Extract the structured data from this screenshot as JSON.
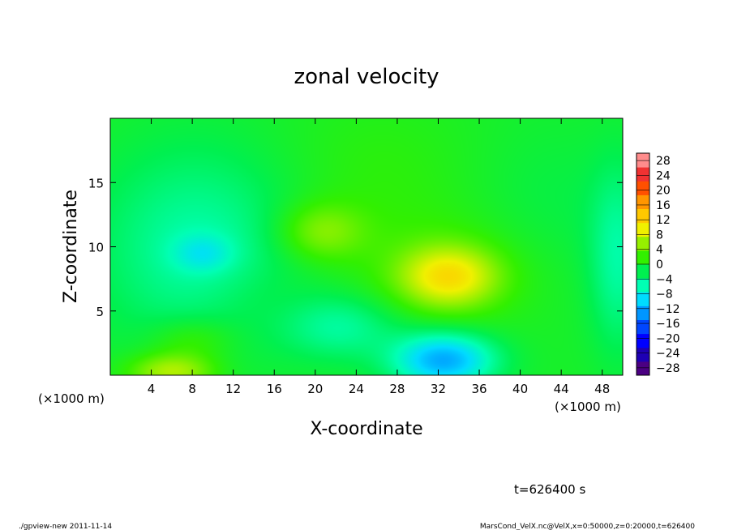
{
  "chart_data": {
    "type": "heatmap",
    "title": "zonal velocity",
    "xlabel": "X-coordinate",
    "ylabel": "Z-coordinate",
    "x_unit_label": "(×1000 m)",
    "x_ticks": [
      4,
      8,
      12,
      16,
      20,
      24,
      28,
      32,
      36,
      40,
      44,
      48
    ],
    "y_ticks": [
      5,
      10,
      15
    ],
    "xlim": [
      0,
      50
    ],
    "ylim": [
      0,
      20
    ],
    "colorbar": {
      "ticks": [
        28,
        24,
        20,
        16,
        12,
        8,
        4,
        0,
        -4,
        -8,
        -12,
        -16,
        -20,
        -24,
        -28
      ],
      "levels": [
        {
          "value": -30,
          "color": "#4b0082"
        },
        {
          "value": -26,
          "color": "#1e00b4"
        },
        {
          "value": -22,
          "color": "#0000ff"
        },
        {
          "value": -18,
          "color": "#0046ff"
        },
        {
          "value": -14,
          "color": "#0096ff"
        },
        {
          "value": -10,
          "color": "#00dcff"
        },
        {
          "value": -6,
          "color": "#00ffb4"
        },
        {
          "value": -2,
          "color": "#00f050"
        },
        {
          "value": 2,
          "color": "#32f000"
        },
        {
          "value": 6,
          "color": "#96f000"
        },
        {
          "value": 10,
          "color": "#f0f000"
        },
        {
          "value": 14,
          "color": "#ffc800"
        },
        {
          "value": 18,
          "color": "#ff9600"
        },
        {
          "value": 22,
          "color": "#ff5000"
        },
        {
          "value": 26,
          "color": "#f03232"
        },
        {
          "value": 30,
          "color": "#ff8c8c"
        }
      ]
    },
    "background_value": 0,
    "features": [
      {
        "x": 33,
        "z": 7.7,
        "sx": 3.2,
        "sz": 1.6,
        "value": 9.5
      },
      {
        "x": 33,
        "z": 8.0,
        "sx": 6.5,
        "sz": 3.0,
        "value": 3.0
      },
      {
        "x": 20.5,
        "z": 11.2,
        "sx": 3.0,
        "sz": 1.6,
        "value": 5.5
      },
      {
        "x": 8.5,
        "z": 10.0,
        "sx": 7.0,
        "sz": 5.5,
        "value": -5.5
      },
      {
        "x": 9.0,
        "z": 9.5,
        "sx": 2.0,
        "sz": 1.0,
        "value": -4.0
      },
      {
        "x": 32.5,
        "z": 1.2,
        "sx": 3.5,
        "sz": 1.5,
        "value": -13.0
      },
      {
        "x": 22.5,
        "z": 3.8,
        "sx": 4.0,
        "sz": 1.8,
        "value": -5.0
      },
      {
        "x": 6.0,
        "z": 0.3,
        "sx": 3.0,
        "sz": 1.0,
        "value": 8.0
      },
      {
        "x": 8.0,
        "z": 2.8,
        "sx": 3.0,
        "sz": 1.2,
        "value": 3.5
      },
      {
        "x": 49.5,
        "z": 9.0,
        "sx": 2.0,
        "sz": 5.0,
        "value": -5.0
      },
      {
        "x": 43.0,
        "z": 13.0,
        "sx": 6.0,
        "sz": 5.0,
        "value": -1.5
      },
      {
        "x": 26.0,
        "z": 15.5,
        "sx": 7.0,
        "sz": 4.0,
        "value": 1.5
      },
      {
        "x": 14.0,
        "z": 6.0,
        "sx": 4.0,
        "sz": 2.0,
        "value": 1.0
      }
    ]
  },
  "time_label": "t=626400 s",
  "footer": {
    "left": "./gpview-new  2011-11-14",
    "right": "MarsCond_VelX.nc@VelX,x=0:50000,z=0:20000,t=626400"
  }
}
